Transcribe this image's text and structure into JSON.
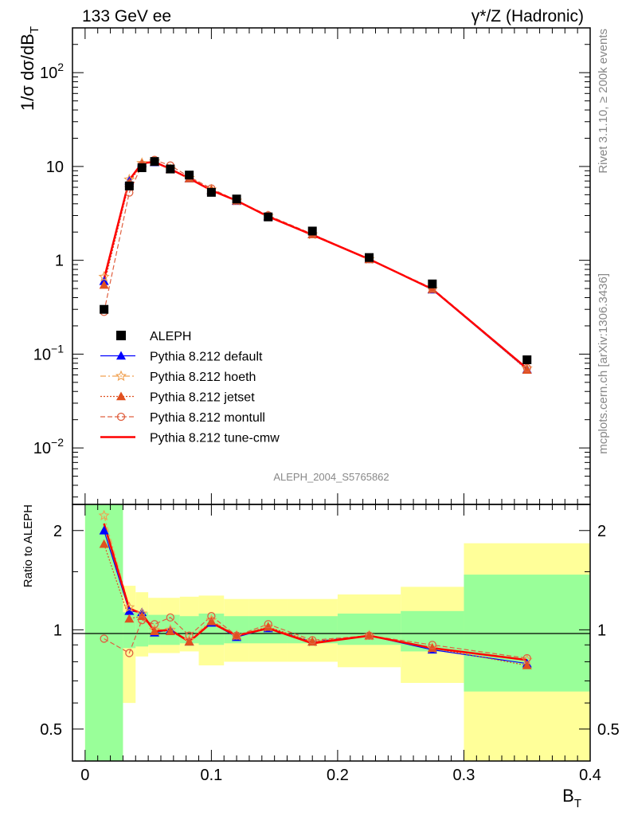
{
  "header": {
    "left_title": "133 GeV ee",
    "right_title": "γ*/Z (Hadronic)"
  },
  "side_labels": {
    "rivet": "Rivet 3.1.10, ≥ 200k events",
    "mcplots": "mcplots.cern.ch [arXiv:1306.3436]"
  },
  "chart_data": {
    "type": "line",
    "analysis_id": "ALEPH_2004_S5765862",
    "ylabel": "1/σ dσ/dB_T",
    "xlabel": "B_T",
    "ratio_ylabel": "Ratio to ALEPH",
    "xlim": [
      -0.01,
      0.4
    ],
    "ylim_log": [
      0.0025,
      300
    ],
    "ratio_ylim": [
      0.4,
      2.4
    ],
    "x_ticks": [
      "0",
      "0.1",
      "0.2",
      "0.3",
      "0.4"
    ],
    "y_ticks": [
      "10^-2",
      "10^-1",
      "1",
      "10",
      "10^2"
    ],
    "ratio_ticks": [
      "0.5",
      "1",
      "2"
    ],
    "bin_edges": [
      0,
      0.03,
      0.04,
      0.05,
      0.06,
      0.075,
      0.09,
      0.11,
      0.13,
      0.16,
      0.2,
      0.25,
      0.3,
      0.4
    ],
    "x": [
      0.015,
      0.035,
      0.045,
      0.055,
      0.0675,
      0.0825,
      0.1,
      0.12,
      0.145,
      0.18,
      0.225,
      0.275,
      0.35
    ],
    "data": {
      "name": "ALEPH",
      "values": [
        0.3,
        6.2,
        9.7,
        11.3,
        9.4,
        8.1,
        5.3,
        4.5,
        2.9,
        2.05,
        1.07,
        0.56,
        0.087
      ]
    },
    "band_green": {
      "lo": [
        0.3,
        0.88,
        0.89,
        0.9,
        0.9,
        0.91,
        0.9,
        0.91,
        0.91,
        0.91,
        0.9,
        0.86,
        0.65
      ],
      "hi": [
        2.4,
        1.13,
        1.13,
        1.11,
        1.11,
        1.1,
        1.12,
        1.1,
        1.1,
        1.1,
        1.12,
        1.14,
        1.47
      ]
    },
    "band_yellow": {
      "lo": [
        0.3,
        0.6,
        0.83,
        0.85,
        0.85,
        0.86,
        0.78,
        0.8,
        0.8,
        0.8,
        0.77,
        0.69,
        0.3
      ],
      "hi": [
        2.4,
        1.36,
        1.3,
        1.25,
        1.25,
        1.26,
        1.27,
        1.24,
        1.24,
        1.24,
        1.28,
        1.35,
        1.83
      ]
    },
    "series": [
      {
        "name": "Pythia 8.212 default",
        "color": "#0000ff",
        "style": "solid",
        "marker": "triangle",
        "ratio": [
          2.0,
          1.14,
          1.13,
          0.98,
          1.0,
          0.92,
          1.05,
          0.95,
          1.01,
          0.92,
          0.96,
          0.87,
          0.79
        ]
      },
      {
        "name": "Pythia 8.212 hoeth",
        "color": "#f0a050",
        "style": "dashdot",
        "marker": "star",
        "ratio": [
          2.22,
          1.17,
          1.12,
          1.0,
          1.0,
          0.93,
          1.07,
          0.96,
          1.02,
          0.92,
          0.96,
          0.88,
          0.81
        ]
      },
      {
        "name": "Pythia 8.212 jetset",
        "color": "#e05020",
        "style": "dotted",
        "marker": "triangle",
        "ratio": [
          1.82,
          1.08,
          1.1,
          0.99,
          0.99,
          0.92,
          1.06,
          0.96,
          1.02,
          0.92,
          0.96,
          0.88,
          0.78
        ]
      },
      {
        "name": "Pythia 8.212 montull",
        "color": "#e06040",
        "style": "dashed",
        "marker": "circle",
        "ratio": [
          0.94,
          0.85,
          1.07,
          1.04,
          1.09,
          0.96,
          1.1,
          0.96,
          1.04,
          0.93,
          0.96,
          0.9,
          0.82
        ]
      },
      {
        "name": "Pythia 8.212 tune-cmw",
        "color": "#ff0000",
        "style": "solid",
        "marker": "none",
        "ratio": [
          2.1,
          1.16,
          1.12,
          0.99,
          1.0,
          0.92,
          1.05,
          0.96,
          1.01,
          0.91,
          0.96,
          0.88,
          0.81
        ]
      }
    ]
  }
}
